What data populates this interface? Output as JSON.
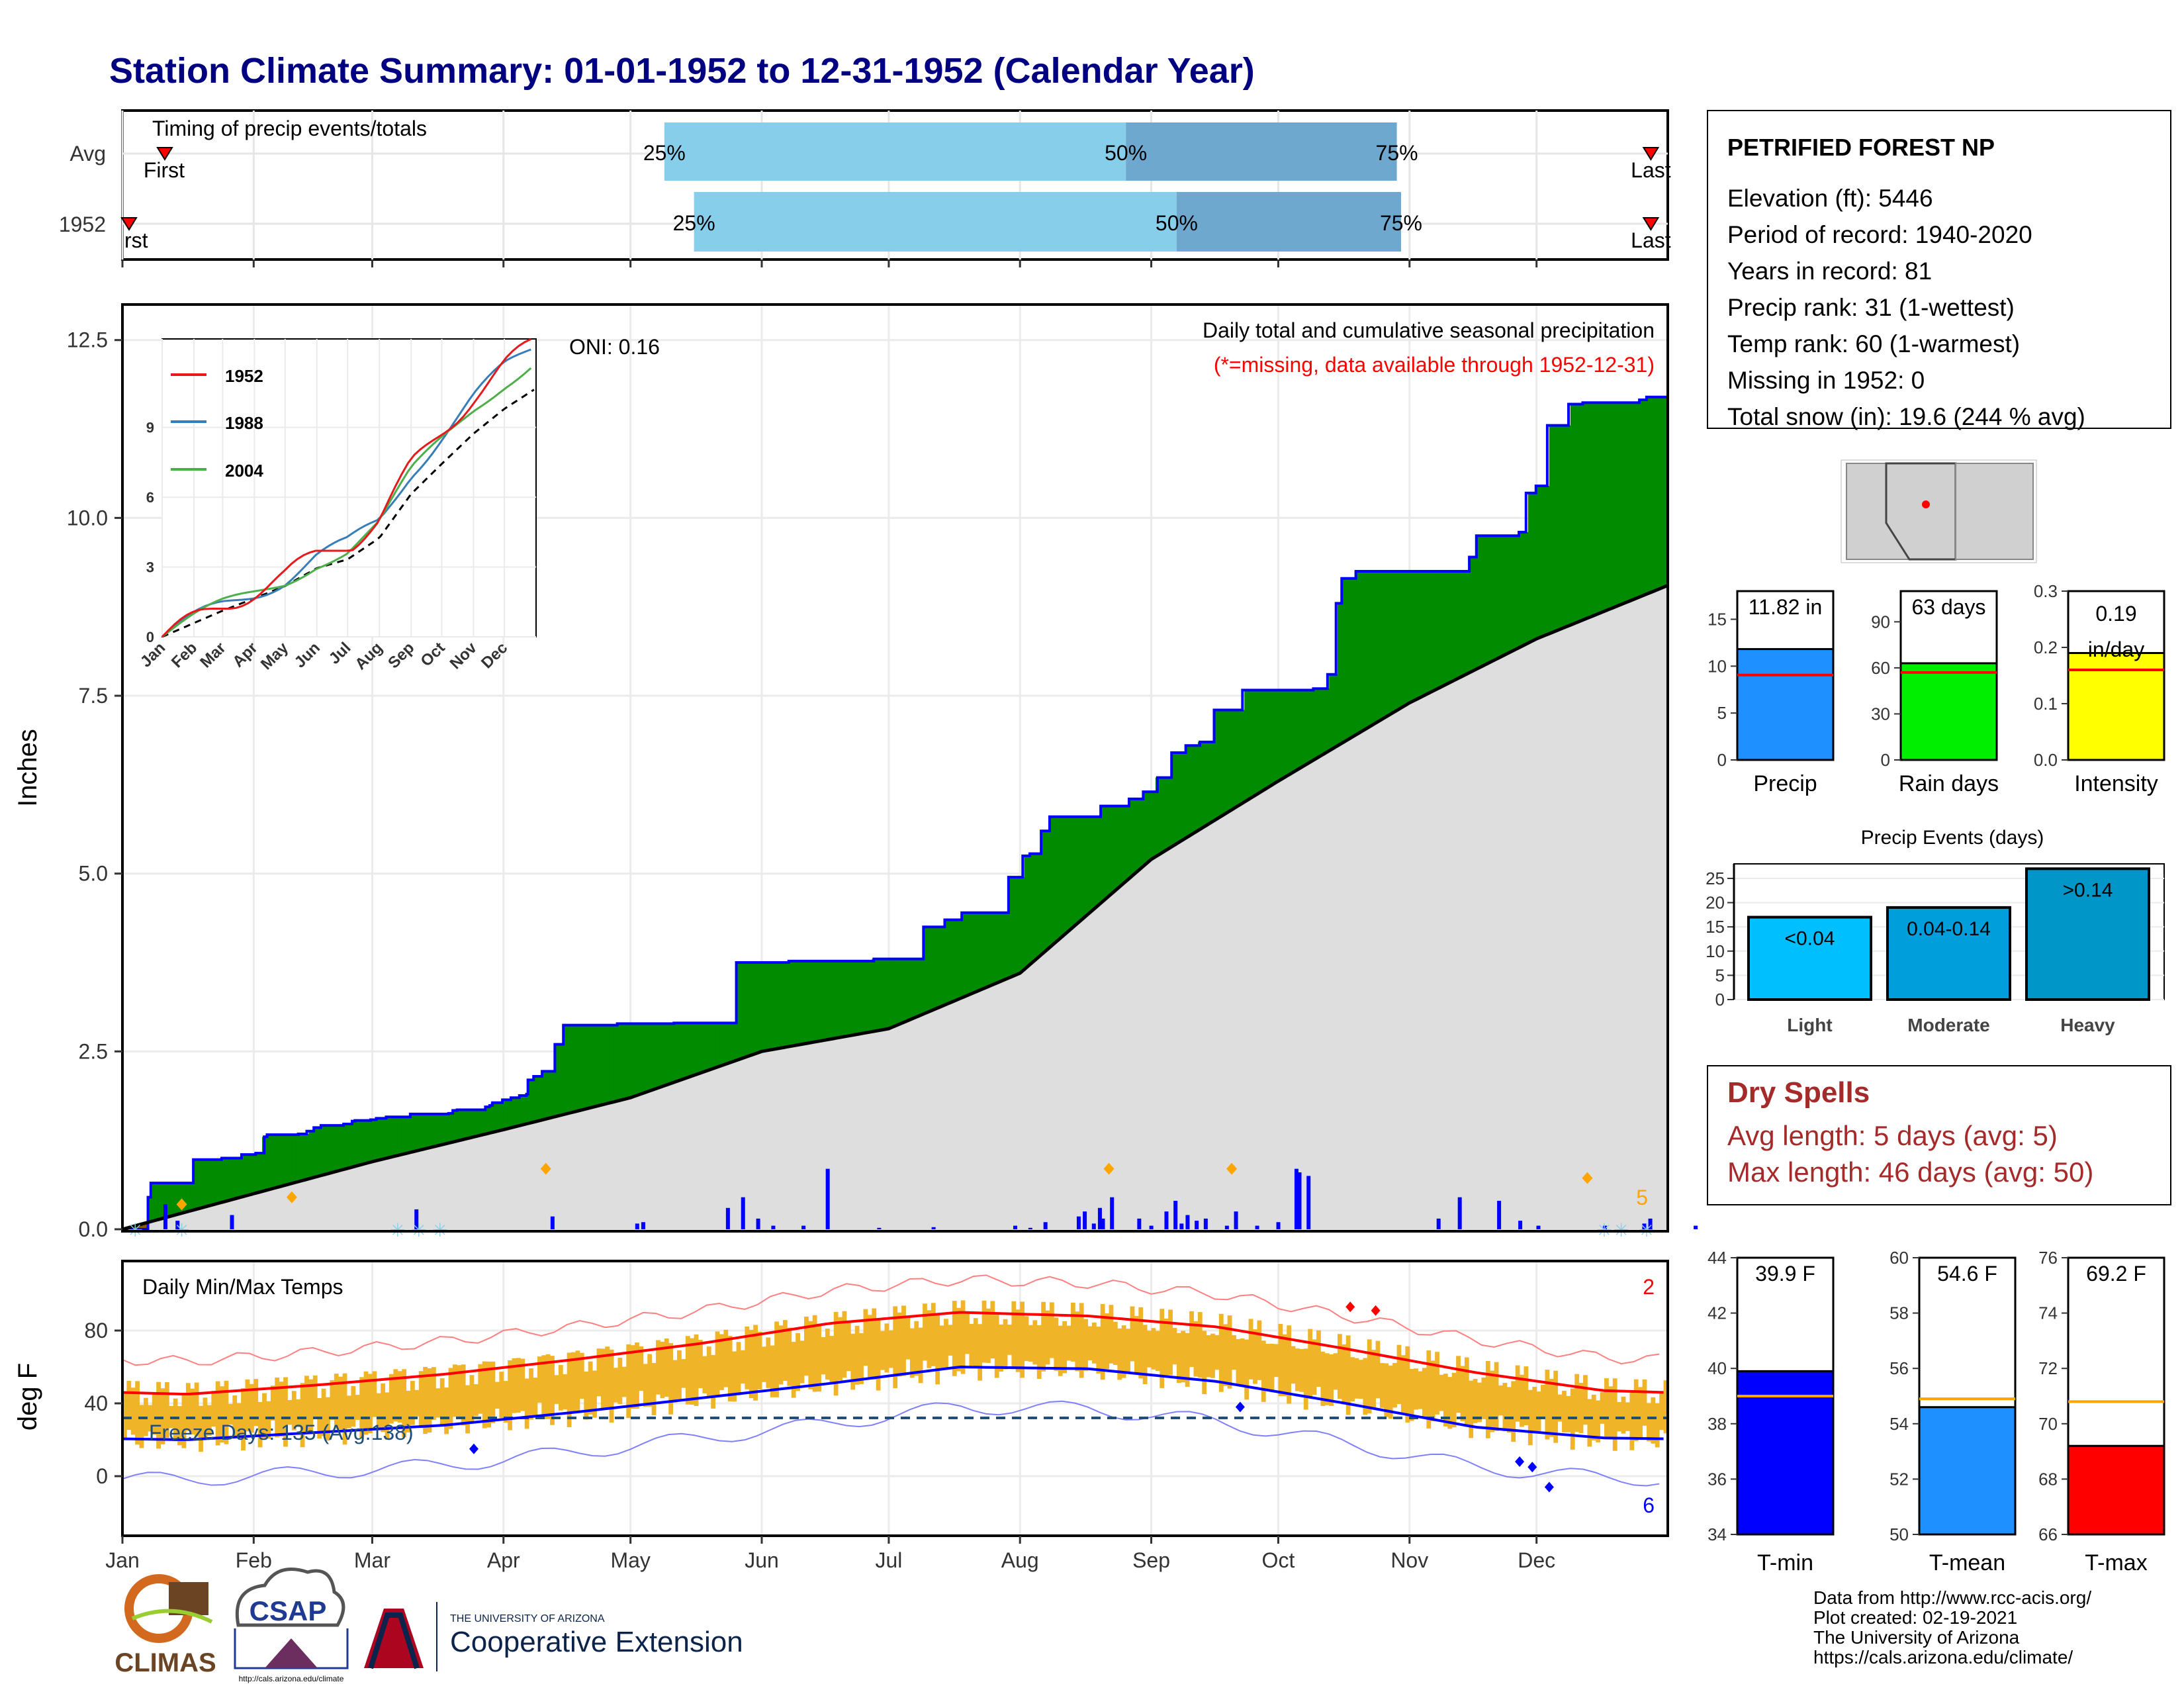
{
  "title": "Station Climate Summary: 01-01-1952 to 12-31-1952 (Calendar Year)",
  "months": [
    "Jan",
    "Feb",
    "Mar",
    "Apr",
    "May",
    "Jun",
    "Jul",
    "Aug",
    "Sep",
    "Oct",
    "Nov",
    "Dec"
  ],
  "inset_months": [
    "Jan",
    "Feb",
    "Mar",
    "Apr",
    "May",
    "Jun",
    "Jul",
    "Aug",
    "Sep",
    "Oct",
    "Nov",
    "Dec"
  ],
  "timing": {
    "label": "Timing of precip events/totals",
    "rows": [
      "Avg",
      "1952"
    ],
    "first_label": "First",
    "first_label_cut": "rst",
    "last_label": "Last",
    "pct_labels": [
      "25%",
      "50%",
      "75%"
    ],
    "avg_bounds_day": [
      128,
      237,
      301
    ],
    "y1952_bounds_day": [
      135,
      249,
      302
    ],
    "avg_first_day": 10,
    "avg_last_day": 361,
    "y1952_first_day": 1,
    "y1952_last_day": 361
  },
  "precip": {
    "ylabel": "Inches",
    "yticks": [
      "0.0",
      "2.5",
      "5.0",
      "7.5",
      "10.0",
      "12.5"
    ],
    "ymax": 13,
    "note1": "Daily total and cumulative seasonal precipitation",
    "note2": "(*=missing, data available through 1952-12-31)",
    "oni": "ONI: 0.16",
    "count": "5",
    "total_1952": 11.82,
    "avg_total": 9.05
  },
  "inset": {
    "legend": [
      "1952",
      "1988",
      "2004"
    ],
    "yticks": [
      "0",
      "3",
      "6",
      "9"
    ]
  },
  "temps": {
    "label": "Daily Min/Max Temps",
    "ylabel": "deg F",
    "yticks": [
      "0",
      "40",
      "80"
    ],
    "freeze_label": "Freeze Days: 135 (Avg:138)",
    "top_count": "2",
    "bottom_count": "6",
    "freeze_line": 32
  },
  "station": {
    "name": "PETRIFIED FOREST NP",
    "lines": [
      "Elevation (ft): 5446",
      "Period of record: 1940-2020",
      "Years in record: 81",
      "Precip rank: 31 (1-wettest)",
      "Temp rank: 60 (1-warmest)",
      "Missing in 1952: 0",
      "Total snow (in): 19.6 (244 % avg)"
    ]
  },
  "mini_bars": [
    {
      "name": "Precip",
      "label": "11.82 in",
      "value": 11.82,
      "avg": 9.05,
      "max": 18,
      "ticks": [
        "0",
        "5",
        "10",
        "15"
      ],
      "color": "#1e90ff"
    },
    {
      "name": "Rain days",
      "label": "63 days",
      "value": 63,
      "avg": 57,
      "max": 110,
      "ticks": [
        "0",
        "30",
        "60",
        "90"
      ],
      "color": "#00ee00"
    },
    {
      "name": "Intensity",
      "label": "0.19 in/day",
      "value": 0.19,
      "avg": 0.16,
      "max": 0.3,
      "ticks": [
        "0.0",
        "0.1",
        "0.2",
        "0.3"
      ],
      "color": "#ffff00"
    }
  ],
  "events": {
    "title": "Precip Events (days)",
    "yticks": [
      "0",
      "5",
      "10",
      "15",
      "20",
      "25"
    ],
    "bars": [
      {
        "name": "Light",
        "label": "<0.04",
        "value": 17,
        "color": "#00bfff"
      },
      {
        "name": "Moderate",
        "label": "0.04-0.14",
        "value": 19,
        "color": "#009edb"
      },
      {
        "name": "Heavy",
        "label": ">0.14",
        "value": 27,
        "color": "#0096c7"
      }
    ]
  },
  "dry_spells": {
    "title": "Dry Spells",
    "avg": "Avg length: 5 days (avg: 5)",
    "max": "Max length: 46 days (avg: 50)"
  },
  "temp_bars": [
    {
      "name": "T-min",
      "label": "39.9 F",
      "value": 39.9,
      "avg": 39.0,
      "min": 34,
      "max": 44,
      "ticks": [
        "34",
        "36",
        "38",
        "40",
        "42",
        "44"
      ],
      "color": "#0000ff"
    },
    {
      "name": "T-mean",
      "label": "54.6 F",
      "value": 54.6,
      "avg": 54.9,
      "min": 50,
      "max": 60,
      "ticks": [
        "50",
        "52",
        "54",
        "56",
        "58",
        "60"
      ],
      "color": "#1e90ff"
    },
    {
      "name": "T-max",
      "label": "69.2 F",
      "value": 69.2,
      "avg": 70.8,
      "min": 66,
      "max": 76,
      "ticks": [
        "66",
        "68",
        "70",
        "72",
        "74",
        "76"
      ],
      "color": "#ff0000"
    }
  ],
  "footer": {
    "lines": [
      "Data from http://www.rcc-acis.org/",
      "Plot created: 02-19-2021",
      "The University of Arizona",
      "https://cals.arizona.edu/climate/"
    ],
    "logo1": "CLIMAS",
    "logo2": "CSAP",
    "logo2_url": "http://cals.arizona.edu/climate",
    "logo3_small": "THE UNIVERSITY OF ARIZONA",
    "logo3": "Cooperative Extension"
  },
  "chart_data": {
    "type": "area",
    "title": "Daily total and cumulative seasonal precipitation",
    "ylabel": "Inches",
    "ylim": [
      0,
      13
    ],
    "steps_1952": [
      [
        1,
        0.0
      ],
      [
        18,
        0.45
      ],
      [
        20,
        0.65
      ],
      [
        50,
        0.98
      ],
      [
        70,
        1.0
      ],
      [
        84,
        1.05
      ],
      [
        94,
        1.07
      ],
      [
        100,
        1.3
      ],
      [
        102,
        1.33
      ],
      [
        124,
        1.34
      ],
      [
        130,
        1.38
      ],
      [
        135,
        1.43
      ],
      [
        140,
        1.46
      ],
      [
        156,
        1.48
      ],
      [
        162,
        1.52
      ],
      [
        164,
        1.53
      ],
      [
        175,
        1.54
      ],
      [
        179,
        1.56
      ],
      [
        186,
        1.58
      ],
      [
        203,
        1.62
      ],
      [
        230,
        1.63
      ],
      [
        233,
        1.67
      ],
      [
        236,
        1.68
      ],
      [
        256,
        1.72
      ],
      [
        259,
        1.74
      ],
      [
        261,
        1.78
      ],
      [
        268,
        1.82
      ],
      [
        274,
        1.85
      ],
      [
        280,
        1.88
      ],
      [
        285,
        1.9
      ],
      [
        286,
        2.1
      ],
      [
        290,
        2.15
      ],
      [
        296,
        2.22
      ],
      [
        305,
        2.6
      ],
      [
        311,
        2.87
      ],
      [
        349,
        2.89
      ],
      [
        389,
        2.9
      ],
      [
        433,
        3.75
      ],
      [
        470,
        3.77
      ],
      [
        530,
        3.8
      ],
      [
        565,
        4.25
      ],
      [
        580,
        4.35
      ],
      [
        592,
        4.45
      ],
      [
        625,
        4.95
      ],
      [
        635,
        5.25
      ],
      [
        640,
        5.28
      ],
      [
        648,
        5.6
      ],
      [
        654,
        5.8
      ],
      [
        690,
        5.95
      ],
      [
        710,
        6.05
      ],
      [
        720,
        6.15
      ],
      [
        730,
        6.35
      ],
      [
        740,
        6.7
      ],
      [
        750,
        6.8
      ],
      [
        760,
        6.85
      ],
      [
        770,
        7.3
      ],
      [
        790,
        7.58
      ],
      [
        840,
        7.6
      ],
      [
        850,
        7.8
      ],
      [
        856,
        8.8
      ],
      [
        860,
        9.15
      ],
      [
        870,
        9.25
      ],
      [
        935,
        9.25
      ],
      [
        950,
        9.45
      ],
      [
        955,
        9.75
      ],
      [
        985,
        9.8
      ],
      [
        990,
        10.35
      ],
      [
        997,
        10.45
      ],
      [
        1005,
        11.3
      ],
      [
        1020,
        11.6
      ],
      [
        1030,
        11.62
      ],
      [
        1070,
        11.66
      ],
      [
        1075,
        11.7
      ],
      [
        1090,
        11.82
      ]
    ],
    "avg_cumulative": [
      [
        0,
        0
      ],
      [
        31,
        0.5
      ],
      [
        59,
        0.95
      ],
      [
        90,
        1.4
      ],
      [
        120,
        1.85
      ],
      [
        151,
        2.5
      ],
      [
        181,
        2.82
      ],
      [
        212,
        3.6
      ],
      [
        243,
        5.2
      ],
      [
        273,
        6.3
      ],
      [
        304,
        7.4
      ],
      [
        334,
        8.3
      ],
      [
        365,
        9.05
      ]
    ],
    "daily_precip_days": [
      9,
      14,
      50,
      99,
      108,
      142,
      158,
      168,
      180,
      187,
      192,
      200,
      205,
      215,
      220,
      225,
      232,
      236,
      244,
      248,
      255,
      260,
      265,
      275,
      280,
      285,
      290,
      295,
      300,
      305,
      310,
      320,
      325,
      330,
      335,
      340,
      345,
      350,
      355
    ],
    "temps_series": [
      {
        "name": "Avg max",
        "values_by_month": [
          45,
          50,
          56,
          64,
          73,
          84,
          90,
          88,
          82,
          70,
          57,
          47
        ]
      },
      {
        "name": "Avg min",
        "values_by_month": [
          20,
          24,
          28,
          35,
          43,
          51,
          60,
          59,
          52,
          40,
          27,
          21
        ]
      }
    ]
  }
}
